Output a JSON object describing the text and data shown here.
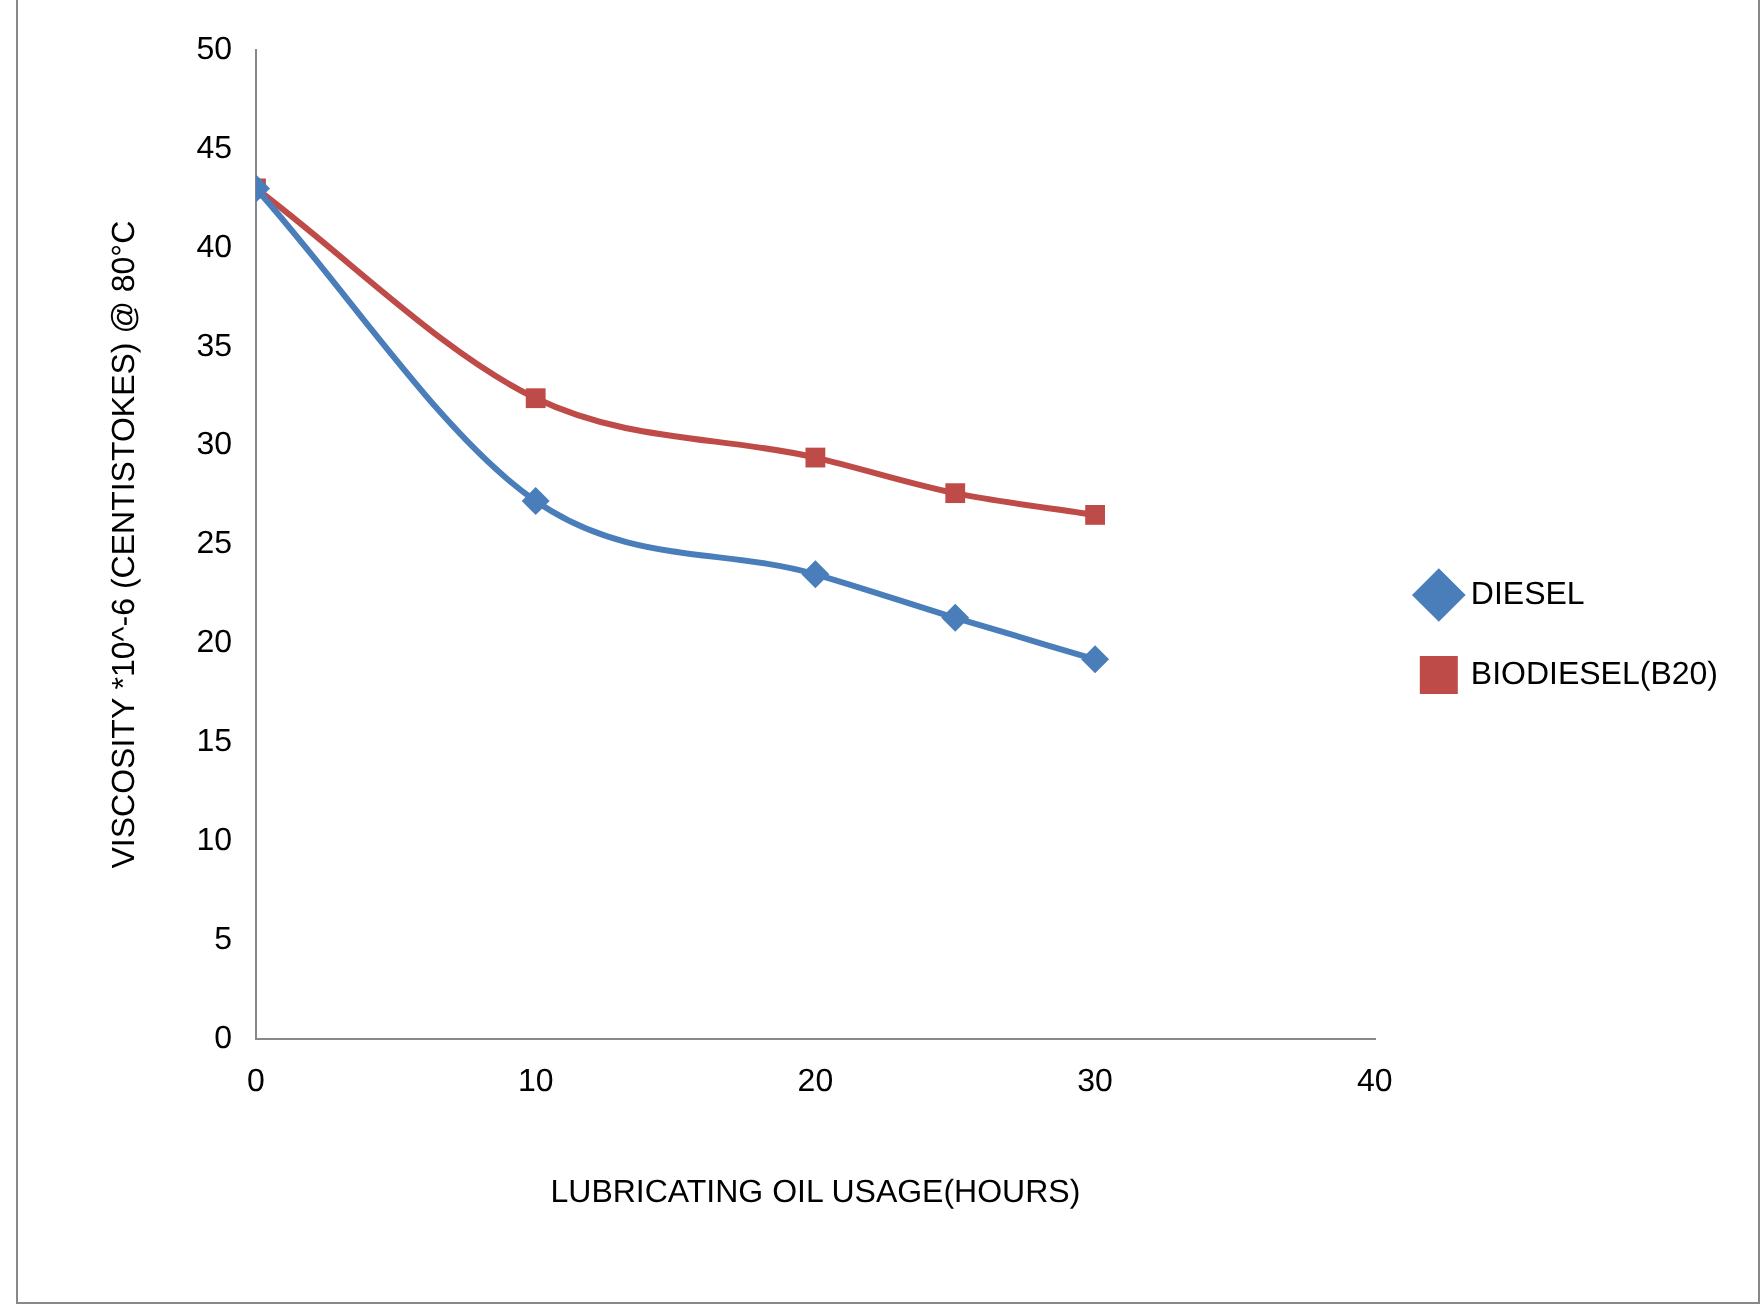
{
  "chart_data": {
    "type": "line",
    "xlabel": "LUBRICATING OIL USAGE(HOURS)",
    "ylabel": "VISCOSITY *10^-6 (CENTISTOKES) @ 80°C",
    "x": [
      0,
      10,
      20,
      25,
      30
    ],
    "series": [
      {
        "name": "DIESEL",
        "color": "#4a7ebb",
        "marker": "diamond",
        "values": [
          43,
          27.2,
          23.5,
          21.3,
          19.2
        ]
      },
      {
        "name": "BIODIESEL(B20)",
        "color": "#be4b48",
        "marker": "square",
        "values": [
          43,
          32.4,
          29.4,
          27.6,
          26.5
        ]
      }
    ],
    "xlim": [
      0,
      40
    ],
    "xticks": [
      0,
      10,
      20,
      30,
      40
    ],
    "ylim": [
      0,
      50
    ],
    "yticks": [
      0,
      5,
      10,
      15,
      20,
      25,
      30,
      35,
      40,
      45,
      50
    ],
    "grid": false,
    "legend": "right"
  }
}
